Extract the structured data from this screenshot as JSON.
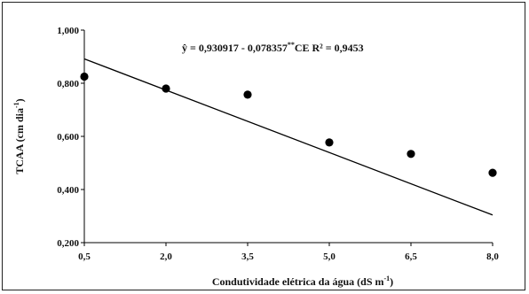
{
  "chart_data": {
    "type": "scatter",
    "x": [
      0.5,
      2.0,
      3.5,
      5.0,
      6.5,
      8.0
    ],
    "y": [
      0.825,
      0.78,
      0.757,
      0.577,
      0.534,
      0.463
    ],
    "trendline": {
      "intercept": 0.930917,
      "slope": -0.078357
    },
    "xlabel": "Condutividade elétrica da água (dS m",
    "xlabel_sup": "-1",
    "xlabel_end": ")",
    "ylabel": "TCAA (cm dia",
    "ylabel_sup": "-1",
    "ylabel_end": ")",
    "equation": "ŷ = 0,930917  - 0,078357",
    "equation_sup": "**",
    "equation_end": "CE  R² = 0,9453",
    "xlim": [
      0.5,
      8.0
    ],
    "ylim": [
      0.2,
      1.0
    ],
    "xticks": [
      "0,5",
      "2,0",
      "3,5",
      "5,0",
      "6,5",
      "8,0"
    ],
    "yticks": [
      "0,200",
      "0,400",
      "0,600",
      "0,800",
      "1,000"
    ],
    "grid": false,
    "colors": {
      "marker": "#000000",
      "line": "#000000",
      "axis": "#000000"
    }
  }
}
